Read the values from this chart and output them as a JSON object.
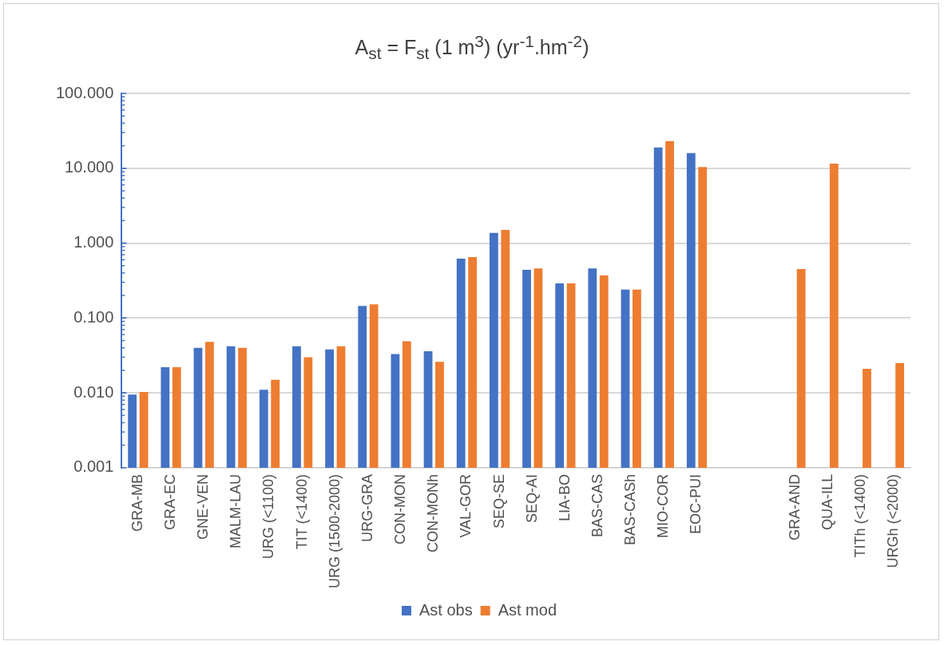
{
  "chart_data": {
    "type": "bar",
    "title": "A$_{st}$ = F$_{st}$ (1 m$^{3}$) (yr$^{-1}$.hm$^{-2}$)",
    "categories": [
      "GRA-MB",
      "GRA-EC",
      "GNE-VEN",
      "MALM-LAU",
      "URG (<1100)",
      "TIT (<1400)",
      "URG (1500-2000)",
      "URG-GRA",
      "CON-MON",
      "CON-MONh",
      "VAL-GOR",
      "SEQ-SE",
      "SEQ-AI",
      "LIA-BO",
      "BAS-CAS",
      "BAS-CASh",
      "MIO-COR",
      "EOC-PUI",
      null,
      null,
      "GRA-AND",
      "QUA-ILL",
      "TITh (<1400)",
      "URGh (<2000)"
    ],
    "series": [
      {
        "name": "Ast obs",
        "color": "#4472c4",
        "values": [
          0.0095,
          0.022,
          0.04,
          0.042,
          0.011,
          0.042,
          0.038,
          0.145,
          0.033,
          0.036,
          0.62,
          1.37,
          0.44,
          0.29,
          0.46,
          0.24,
          19,
          16,
          null,
          null,
          null,
          null,
          null,
          null
        ]
      },
      {
        "name": "Ast mod",
        "color": "#ed7d31",
        "values": [
          0.0103,
          0.022,
          0.048,
          0.04,
          0.015,
          0.03,
          0.042,
          0.152,
          0.049,
          0.026,
          0.65,
          1.5,
          0.46,
          0.29,
          0.37,
          0.24,
          23,
          10.4,
          null,
          null,
          0.45,
          11.5,
          0.021,
          0.025
        ]
      }
    ],
    "log": true,
    "ylim": [
      0.001,
      100
    ],
    "yticks": [
      0.001,
      {
        "value": 0.01,
        "label": "0.010"
      },
      {
        "value": 0.1,
        "label": "0.100"
      },
      {
        "value": 1,
        "label": "1.000"
      },
      {
        "value": 10,
        "label": "10.000"
      },
      {
        "value": 100,
        "label": "100.000"
      }
    ],
    "grid": "y",
    "legend": "bottom"
  }
}
